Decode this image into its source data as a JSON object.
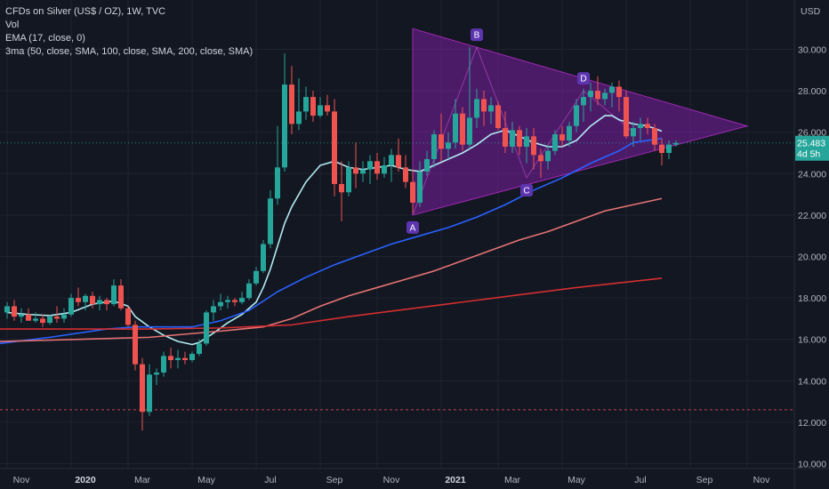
{
  "legend": {
    "title": "CFDs on Silver (US$ / OZ), 1W, TVC",
    "vol": "Vol",
    "ema": "EMA (17, close, 0)",
    "ma3": "3ma (50, close, SMA, 100, close, SMA, 200, close, SMA)"
  },
  "price_axis": {
    "currency": "USD",
    "ticks": [
      "30.000",
      "28.000",
      "26.000",
      "24.000",
      "22.000",
      "20.000",
      "18.000",
      "16.000",
      "14.000",
      "12.000",
      "10.000"
    ],
    "last_price": "25.483",
    "countdown": "4d 5h"
  },
  "colors": {
    "background": "#131722",
    "up": "#26a69a",
    "down": "#ef5350",
    "ema": "#b2ebf2",
    "ma50": "#2962ff",
    "ma100": "#e57373",
    "ma200": "#d32f2f",
    "triangle": "#7b1fa2",
    "label_bg": "#5e35b1"
  },
  "chart_data": {
    "type": "candlestick",
    "title": "CFDs on Silver (US$ / OZ), 1W, TVC",
    "ylim": [
      10,
      31.5
    ],
    "x_ticks": [
      {
        "label": "Nov",
        "t": 0,
        "bold": false
      },
      {
        "label": "2020",
        "t": 9,
        "bold": true
      },
      {
        "label": "Mar",
        "t": 17,
        "bold": false
      },
      {
        "label": "May",
        "t": 26,
        "bold": false
      },
      {
        "label": "Jul",
        "t": 35,
        "bold": false
      },
      {
        "label": "Sep",
        "t": 44,
        "bold": false
      },
      {
        "label": "Nov",
        "t": 52,
        "bold": false
      },
      {
        "label": "2021",
        "t": 61,
        "bold": true
      },
      {
        "label": "Mar",
        "t": 69,
        "bold": false
      },
      {
        "label": "May",
        "t": 78,
        "bold": false
      },
      {
        "label": "Jul",
        "t": 87,
        "bold": false
      },
      {
        "label": "Sep",
        "t": 96,
        "bold": false
      },
      {
        "label": "Nov",
        "t": 104,
        "bold": false
      }
    ],
    "candles": [
      [
        17.3,
        17.8,
        17.0,
        17.6
      ],
      [
        17.6,
        17.9,
        16.9,
        17.1
      ],
      [
        17.1,
        17.5,
        16.8,
        17.2
      ],
      [
        17.2,
        17.5,
        16.9,
        16.9
      ],
      [
        16.9,
        17.3,
        16.8,
        17.0
      ],
      [
        17.0,
        17.2,
        16.6,
        16.8
      ],
      [
        16.8,
        17.2,
        16.7,
        17.1
      ],
      [
        17.1,
        17.6,
        16.8,
        17.0
      ],
      [
        17.0,
        17.5,
        16.8,
        17.2
      ],
      [
        17.2,
        18.2,
        17.1,
        18.0
      ],
      [
        18.0,
        18.5,
        17.6,
        17.8
      ],
      [
        17.8,
        18.2,
        17.4,
        18.1
      ],
      [
        18.1,
        18.3,
        17.5,
        17.7
      ],
      [
        17.7,
        18.1,
        17.4,
        17.9
      ],
      [
        17.9,
        18.0,
        17.4,
        17.7
      ],
      [
        17.7,
        18.9,
        17.6,
        18.6
      ],
      [
        18.6,
        18.9,
        17.4,
        17.5
      ],
      [
        17.5,
        17.6,
        16.6,
        16.7
      ],
      [
        16.7,
        16.9,
        14.5,
        14.8
      ],
      [
        14.8,
        15.1,
        11.6,
        12.5
      ],
      [
        12.5,
        14.8,
        12.3,
        14.3
      ],
      [
        14.3,
        14.6,
        13.8,
        14.4
      ],
      [
        14.4,
        15.4,
        14.2,
        15.2
      ],
      [
        15.2,
        15.6,
        14.6,
        15.0
      ],
      [
        15.0,
        15.5,
        14.6,
        15.1
      ],
      [
        15.1,
        15.4,
        14.8,
        15.0
      ],
      [
        15.0,
        15.4,
        14.9,
        15.3
      ],
      [
        15.3,
        16.0,
        15.2,
        15.8
      ],
      [
        15.8,
        17.4,
        15.7,
        17.3
      ],
      [
        17.3,
        17.9,
        16.9,
        17.6
      ],
      [
        17.6,
        18.2,
        17.4,
        17.8
      ],
      [
        17.8,
        18.1,
        17.5,
        17.9
      ],
      [
        17.9,
        18.0,
        17.6,
        17.8
      ],
      [
        17.8,
        18.3,
        17.7,
        18.0
      ],
      [
        18.0,
        18.9,
        17.9,
        18.7
      ],
      [
        18.7,
        19.5,
        18.6,
        19.3
      ],
      [
        19.3,
        20.8,
        19.2,
        20.6
      ],
      [
        20.6,
        23.2,
        20.4,
        22.8
      ],
      [
        22.8,
        26.3,
        22.5,
        24.3
      ],
      [
        24.3,
        29.8,
        24.1,
        28.3
      ],
      [
        28.3,
        29.2,
        25.9,
        26.4
      ],
      [
        26.4,
        28.6,
        26.1,
        27.0
      ],
      [
        27.0,
        28.2,
        26.6,
        27.7
      ],
      [
        27.7,
        28.0,
        26.5,
        26.8
      ],
      [
        26.8,
        27.7,
        26.7,
        27.3
      ],
      [
        27.3,
        27.8,
        26.8,
        27.0
      ],
      [
        27.0,
        27.6,
        22.9,
        23.5
      ],
      [
        23.5,
        24.6,
        21.7,
        23.1
      ],
      [
        23.1,
        24.6,
        22.9,
        24.3
      ],
      [
        24.3,
        25.5,
        23.3,
        24.0
      ],
      [
        24.0,
        24.6,
        23.6,
        24.2
      ],
      [
        24.2,
        24.9,
        23.5,
        24.6
      ],
      [
        24.6,
        25.0,
        23.7,
        24.0
      ],
      [
        24.0,
        24.8,
        23.8,
        24.4
      ],
      [
        24.4,
        25.2,
        23.6,
        24.9
      ],
      [
        24.9,
        25.7,
        24.1,
        24.3
      ],
      [
        24.3,
        24.9,
        23.3,
        23.6
      ],
      [
        23.6,
        24.2,
        22.1,
        22.6
      ],
      [
        22.6,
        24.6,
        22.4,
        24.1
      ],
      [
        24.1,
        25.1,
        23.9,
        24.7
      ],
      [
        24.7,
        26.1,
        24.3,
        25.9
      ],
      [
        25.9,
        26.9,
        24.6,
        25.2
      ],
      [
        25.2,
        26.0,
        24.7,
        25.5
      ],
      [
        25.5,
        27.6,
        25.2,
        26.9
      ],
      [
        26.9,
        27.2,
        25.1,
        25.4
      ],
      [
        25.4,
        30.1,
        25.2,
        26.7
      ],
      [
        26.7,
        28.1,
        26.2,
        27.6
      ],
      [
        27.6,
        28.0,
        26.3,
        27.0
      ],
      [
        27.0,
        27.7,
        26.4,
        27.3
      ],
      [
        27.3,
        27.5,
        26.1,
        26.2
      ],
      [
        26.2,
        27.0,
        25.0,
        25.3
      ],
      [
        25.3,
        26.5,
        25.0,
        26.1
      ],
      [
        26.1,
        26.3,
        24.9,
        25.3
      ],
      [
        25.3,
        26.2,
        24.5,
        25.8
      ],
      [
        25.8,
        26.2,
        24.2,
        24.9
      ],
      [
        24.9,
        25.2,
        23.8,
        24.6
      ],
      [
        24.6,
        25.4,
        24.2,
        25.1
      ],
      [
        25.1,
        26.1,
        24.9,
        25.9
      ],
      [
        25.9,
        26.3,
        25.3,
        25.6
      ],
      [
        25.6,
        26.5,
        25.3,
        26.3
      ],
      [
        26.3,
        27.6,
        26.0,
        27.3
      ],
      [
        27.3,
        28.1,
        26.5,
        27.7
      ],
      [
        27.7,
        28.4,
        27.0,
        28.0
      ],
      [
        28.0,
        28.7,
        27.3,
        27.6
      ],
      [
        27.6,
        28.1,
        27.3,
        27.9
      ],
      [
        27.9,
        28.4,
        27.2,
        28.2
      ],
      [
        28.2,
        28.5,
        27.0,
        27.7
      ],
      [
        27.7,
        28.0,
        25.7,
        25.8
      ],
      [
        25.8,
        26.5,
        25.3,
        26.2
      ],
      [
        26.2,
        26.7,
        25.6,
        26.4
      ],
      [
        26.4,
        26.7,
        25.9,
        26.2
      ],
      [
        26.2,
        26.4,
        25.1,
        25.4
      ],
      [
        25.4,
        25.7,
        24.4,
        25.0
      ],
      [
        25.0,
        25.6,
        24.7,
        25.4
      ],
      [
        25.4,
        25.6,
        25.3,
        25.48
      ]
    ],
    "series": [
      {
        "name": "EMA (17, close, 0)",
        "color": "#b2ebf2",
        "points": [
          [
            0,
            17.3
          ],
          [
            3,
            17.2
          ],
          [
            6,
            17.15
          ],
          [
            9,
            17.3
          ],
          [
            12,
            17.7
          ],
          [
            15,
            17.85
          ],
          [
            17,
            17.6
          ],
          [
            18,
            17.1
          ],
          [
            20,
            16.6
          ],
          [
            22,
            16.2
          ],
          [
            24,
            15.9
          ],
          [
            26,
            15.75
          ],
          [
            27,
            15.85
          ],
          [
            29,
            16.3
          ],
          [
            31,
            16.8
          ],
          [
            33,
            17.2
          ],
          [
            35,
            17.8
          ],
          [
            36,
            18.5
          ],
          [
            37,
            19.4
          ],
          [
            38,
            20.5
          ],
          [
            39,
            21.6
          ],
          [
            40,
            22.4
          ],
          [
            42,
            23.6
          ],
          [
            44,
            24.4
          ],
          [
            46,
            24.6
          ],
          [
            48,
            24.3
          ],
          [
            50,
            24.2
          ],
          [
            52,
            24.3
          ],
          [
            54,
            24.4
          ],
          [
            56,
            24.2
          ],
          [
            58,
            24.1
          ],
          [
            60,
            24.4
          ],
          [
            62,
            24.7
          ],
          [
            64,
            25.0
          ],
          [
            66,
            25.4
          ],
          [
            68,
            25.9
          ],
          [
            70,
            26.1
          ],
          [
            72,
            25.8
          ],
          [
            74,
            25.5
          ],
          [
            76,
            25.3
          ],
          [
            78,
            25.3
          ],
          [
            80,
            25.6
          ],
          [
            82,
            26.3
          ],
          [
            84,
            26.8
          ],
          [
            85,
            26.8
          ],
          [
            86,
            26.6
          ],
          [
            88,
            26.4
          ],
          [
            90,
            26.3
          ],
          [
            92,
            26.05
          ]
        ]
      },
      {
        "name": "50",
        "color": "#2962ff",
        "points": [
          [
            -1,
            15.8
          ],
          [
            6,
            16.1
          ],
          [
            14,
            16.5
          ],
          [
            18,
            16.6
          ],
          [
            22,
            16.6
          ],
          [
            26,
            16.6
          ],
          [
            30,
            16.9
          ],
          [
            34,
            17.4
          ],
          [
            38,
            18.3
          ],
          [
            42,
            19.0
          ],
          [
            46,
            19.6
          ],
          [
            50,
            20.1
          ],
          [
            54,
            20.6
          ],
          [
            58,
            21.0
          ],
          [
            62,
            21.4
          ],
          [
            66,
            21.9
          ],
          [
            70,
            22.5
          ],
          [
            74,
            23.2
          ],
          [
            78,
            23.8
          ],
          [
            82,
            24.5
          ],
          [
            86,
            25.1
          ],
          [
            88,
            25.5
          ],
          [
            92,
            25.7
          ]
        ]
      },
      {
        "name": "100",
        "color": "#e57373",
        "points": [
          [
            -1,
            15.9
          ],
          [
            10,
            16.0
          ],
          [
            20,
            16.1
          ],
          [
            30,
            16.4
          ],
          [
            36,
            16.6
          ],
          [
            40,
            17.0
          ],
          [
            44,
            17.6
          ],
          [
            48,
            18.1
          ],
          [
            52,
            18.5
          ],
          [
            56,
            18.9
          ],
          [
            60,
            19.3
          ],
          [
            64,
            19.8
          ],
          [
            68,
            20.3
          ],
          [
            72,
            20.8
          ],
          [
            76,
            21.2
          ],
          [
            80,
            21.7
          ],
          [
            84,
            22.2
          ],
          [
            88,
            22.5
          ],
          [
            92,
            22.8
          ]
        ]
      },
      {
        "name": "200",
        "color": "#d32f2f",
        "points": [
          [
            -1,
            16.5
          ],
          [
            10,
            16.5
          ],
          [
            20,
            16.5
          ],
          [
            30,
            16.55
          ],
          [
            40,
            16.7
          ],
          [
            48,
            17.1
          ],
          [
            56,
            17.45
          ],
          [
            64,
            17.8
          ],
          [
            72,
            18.15
          ],
          [
            80,
            18.5
          ],
          [
            88,
            18.8
          ],
          [
            92,
            18.95
          ]
        ]
      }
    ],
    "triangle": [
      [
        57,
        31.0
      ],
      [
        104,
        26.3
      ],
      [
        57,
        22.0
      ]
    ],
    "triangle_pivot_lines": [
      [
        57,
        22.0
      ],
      [
        66,
        30.1
      ],
      [
        73,
        23.8
      ],
      [
        81,
        28.0
      ],
      [
        88,
        26.0
      ]
    ],
    "pattern_points": [
      {
        "label": "A",
        "t": 57,
        "price": 22.0,
        "pos": "below"
      },
      {
        "label": "B",
        "t": 66,
        "price": 30.1,
        "pos": "above"
      },
      {
        "label": "C",
        "t": 73,
        "price": 23.8,
        "pos": "below"
      },
      {
        "label": "D",
        "t": 81,
        "price": 28.0,
        "pos": "above"
      }
    ],
    "horizontal_lines": [
      {
        "price": 25.483,
        "style": "dotted",
        "color": "#26a69a"
      },
      {
        "price": 12.6,
        "style": "dashed",
        "color": "#ef5350"
      }
    ]
  }
}
